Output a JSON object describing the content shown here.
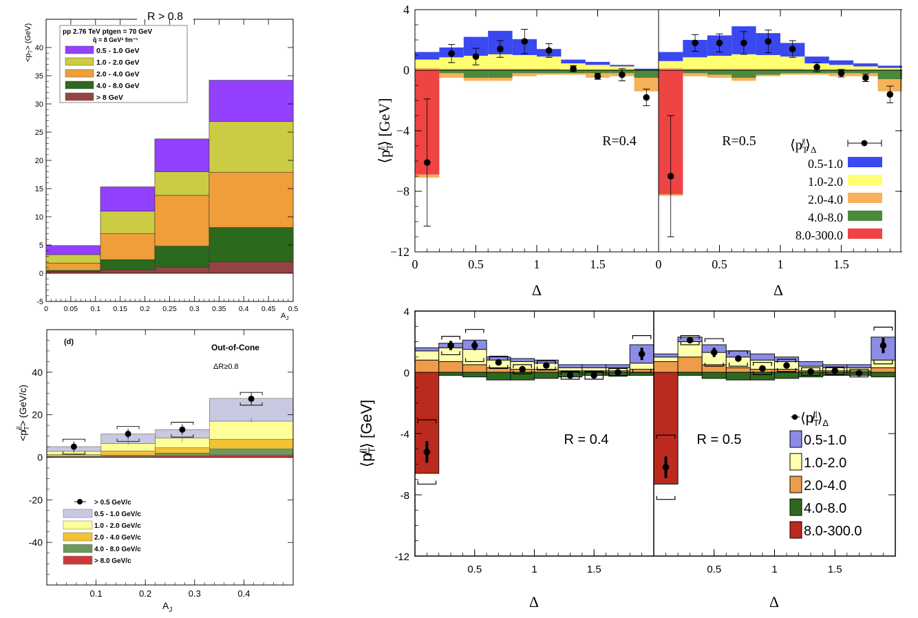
{
  "colors": {
    "purple": "#9440ff",
    "lime": "#cccc44",
    "orange": "#f09e3a",
    "dkgreen": "#2b6a1c",
    "maroon": "#954343",
    "blue": "#3a48f0",
    "yellow": "#ffff70",
    "lorange": "#f5b25a",
    "green": "#4a8a3a",
    "red": "#ee4444",
    "lavender": "#c8c8e0",
    "lyellow": "#ffff99",
    "gold": "#f2c232",
    "sage": "#6b9a5a",
    "crimson": "#cc3a3a",
    "pblue": "#8c8ce8",
    "pyellow": "#ffffb0",
    "porange": "#ee9c4a",
    "pgreen": "#2e6a1e",
    "pred": "#bb2a1e"
  },
  "chart_data": [
    {
      "id": "A",
      "type": "bar",
      "title": "R > 0.8",
      "ylabel": "<p",
      "ylabel_sub": "T",
      "ylabel_tail": "> (GeV)",
      "xlabel": "A",
      "xlabel_sub": "J",
      "xlim": [
        0,
        0.5
      ],
      "ylim": [
        -5,
        45
      ],
      "xticks": [
        0,
        0.05,
        0.1,
        0.15,
        0.2,
        0.25,
        0.3,
        0.35,
        0.4,
        0.45,
        0.5
      ],
      "xtick_labels": [
        "0",
        "0.05",
        "0.1",
        "0.15",
        "0.2",
        "0.25",
        "0.3",
        "0.35",
        "0.4",
        "0.45",
        "0.5"
      ],
      "yticks": [
        -5,
        0,
        5,
        10,
        15,
        20,
        25,
        30,
        35,
        40
      ],
      "ytick_labels": [
        "-5",
        "0",
        "5",
        "10",
        "15",
        "20",
        "25",
        "30",
        "35",
        "40"
      ],
      "bins": [
        [
          0,
          0.11
        ],
        [
          0.11,
          0.22
        ],
        [
          0.22,
          0.33
        ],
        [
          0.33,
          0.5
        ]
      ],
      "stacked": true,
      "series": [
        {
          "name": "> 8 GeV",
          "color": "maroon",
          "values": [
            0.3,
            0.6,
            1.1,
            2.0
          ]
        },
        {
          "name": "4.0 - 8.0 GeV",
          "color": "dkgreen",
          "values": [
            0.2,
            1.8,
            3.7,
            6.1
          ]
        },
        {
          "name": "2.0 - 4.0 GeV",
          "color": "orange",
          "values": [
            1.3,
            4.6,
            9.0,
            9.8
          ]
        },
        {
          "name": "1.0 - 2.0 GeV",
          "color": "lime",
          "values": [
            1.5,
            4.0,
            4.2,
            9.0
          ]
        },
        {
          "name": "0.5 - 1.0 GeV",
          "color": "purple",
          "values": [
            1.6,
            4.3,
            5.8,
            7.3
          ]
        }
      ],
      "legend_header": [
        "pp 2.76 TeV ptgen = 70 GeV",
        "q̂ = 8 GeV² fm⁻¹"
      ],
      "legend_order": [
        "0.5 - 1.0 GeV",
        "1.0 - 2.0 GeV",
        "2.0 - 4.0 GeV",
        "4.0 - 8.0 GeV",
        "> 8 GeV"
      ]
    },
    {
      "id": "B",
      "type": "bar",
      "ylabel": "⟨p̸",
      "ylabel_sub": "T",
      "ylabel_sup": "||",
      "ylabel_tail": "⟩ [GeV]",
      "xlabel": "Δ",
      "ylim": [
        -12,
        4
      ],
      "yticks": [
        -12,
        -8,
        -4,
        0,
        4
      ],
      "ytick_labels": [
        "−12",
        "−8",
        "−4",
        "0",
        "4"
      ],
      "xticks": [
        0,
        0.5,
        1,
        1.5
      ],
      "xtick_labels": [
        "0",
        "0.5",
        "1",
        "1.5"
      ],
      "legend_title": "⟨p̸",
      "legend_title_sub": "T",
      "legend_title_sup": "||",
      "legend_title_tail": "⟩",
      "legend_title_delta": "Δ",
      "legend": [
        "0.5-1.0",
        "1.0-2.0",
        "2.0-4.0",
        "4.0-8.0",
        "8.0-300.0"
      ],
      "legend_colors": [
        "blue",
        "yellow",
        "lorange",
        "green",
        "red"
      ],
      "panels": [
        {
          "label": "R=0.4",
          "xlim": [
            0,
            2
          ],
          "bin_edges": [
            0,
            0.2,
            0.4,
            0.6,
            0.8,
            1.0,
            1.2,
            1.4,
            1.6,
            1.8,
            2.0
          ],
          "pos": {
            "8.0-300.0": [
              0,
              0,
              0,
              0,
              0,
              0,
              0,
              0,
              0,
              0
            ],
            "4.0-8.0": [
              0,
              0,
              0,
              0,
              0,
              0,
              0,
              0,
              0,
              0
            ],
            "2.0-4.0": [
              0.15,
              0.1,
              0.1,
              0.1,
              0.1,
              0.1,
              0.05,
              0.05,
              0.05,
              0
            ],
            "1.0-2.0": [
              0.55,
              0.75,
              0.85,
              0.95,
              0.9,
              0.8,
              0.4,
              0.3,
              0.2,
              0
            ],
            "0.5-1.0": [
              0.5,
              0.65,
              1.25,
              1.55,
              1.05,
              0.5,
              0.25,
              0.2,
              0.1,
              0.1
            ]
          },
          "neg": {
            "8.0-300.0": [
              -6.9,
              0,
              0,
              0,
              0,
              0,
              0,
              0,
              0,
              0
            ],
            "4.0-8.0": [
              0,
              -0.2,
              -0.5,
              -0.5,
              -0.2,
              -0.2,
              -0.2,
              -0.2,
              -0.2,
              -0.5
            ],
            "2.0-4.0": [
              -0.2,
              -0.3,
              -0.2,
              -0.2,
              -0.2,
              -0.1,
              -0.1,
              -0.3,
              -0.2,
              -0.9
            ]
          },
          "points": [
            -6.1,
            1.1,
            0.9,
            1.4,
            1.9,
            1.3,
            0.1,
            -0.4,
            -0.3,
            -1.8
          ],
          "errors": [
            4.2,
            0.6,
            0.55,
            0.55,
            0.8,
            0.45,
            0.2,
            0.2,
            0.4,
            0.55
          ]
        },
        {
          "label": "R=0.5",
          "xlim": [
            0,
            2
          ],
          "bin_edges": [
            0,
            0.2,
            0.4,
            0.6,
            0.8,
            1.0,
            1.2,
            1.4,
            1.6,
            1.8,
            2.0
          ],
          "pos": {
            "8.0-300.0": [
              0,
              0,
              0,
              0,
              0,
              0,
              0,
              0,
              0,
              0
            ],
            "4.0-8.0": [
              0,
              0,
              0,
              0,
              0,
              0,
              0,
              0,
              0,
              0
            ],
            "2.0-4.0": [
              0.15,
              0.1,
              0.1,
              0.1,
              0.1,
              0.1,
              0.05,
              0.05,
              0.05,
              0.05
            ],
            "1.0-2.0": [
              0.45,
              0.75,
              0.85,
              0.95,
              0.9,
              0.8,
              0.4,
              0.3,
              0.2,
              0.1
            ],
            "0.5-1.0": [
              0.6,
              1.15,
              1.35,
              1.85,
              1.45,
              0.9,
              0.45,
              0.3,
              0.2,
              0.15
            ]
          },
          "neg": {
            "8.0-300.0": [
              -8.2,
              0,
              0,
              0,
              0,
              0,
              0,
              0,
              0,
              0
            ],
            "4.0-8.0": [
              0,
              -0.2,
              -0.3,
              -0.5,
              -0.3,
              -0.2,
              -0.2,
              -0.2,
              -0.2,
              -0.6
            ],
            "2.0-4.0": [
              -0.1,
              -0.2,
              -0.2,
              -0.2,
              -0.1,
              -0.1,
              -0.1,
              -0.2,
              -0.2,
              -0.8
            ]
          },
          "points": [
            -7.0,
            1.8,
            1.8,
            1.8,
            1.9,
            1.4,
            0.2,
            -0.2,
            -0.5,
            -1.6
          ],
          "errors": [
            4.0,
            0.55,
            0.6,
            0.75,
            0.75,
            0.55,
            0.3,
            0.25,
            0.25,
            0.55
          ]
        }
      ]
    },
    {
      "id": "C",
      "type": "bar",
      "panel_label": "(d)",
      "text1": "Out-of-Cone",
      "text2": "ΔR≥0.8",
      "ylabel": "<p̸",
      "ylabel_sub": "T",
      "ylabel_sup": "||",
      "ylabel_tail": "> (GeV/c)",
      "xlabel": "A",
      "xlabel_sub": "J",
      "xlim": [
        0,
        0.5
      ],
      "ylim": [
        -60,
        60
      ],
      "yticks": [
        -40,
        -20,
        0,
        20,
        40
      ],
      "ytick_labels": [
        "-40",
        "-20",
        "0",
        "20",
        "40"
      ],
      "xticks": [
        0.1,
        0.2,
        0.3,
        0.4
      ],
      "xtick_labels": [
        "0.1",
        "0.2",
        "0.3",
        "0.4"
      ],
      "bins": [
        [
          0,
          0.11
        ],
        [
          0.11,
          0.22
        ],
        [
          0.22,
          0.33
        ],
        [
          0.33,
          0.5
        ]
      ],
      "series": [
        {
          "name": "> 8.0 GeV/c",
          "color": "crimson",
          "values": [
            0.2,
            0.4,
            0.8,
            1.2
          ]
        },
        {
          "name": "4.0 - 8.0 GeV/c",
          "color": "sage",
          "values": [
            0.3,
            0.6,
            1.2,
            2.8
          ]
        },
        {
          "name": "2.0 - 4.0 GeV/c",
          "color": "gold",
          "values": [
            0.8,
            2.0,
            2.5,
            4.5
          ]
        },
        {
          "name": "1.0 - 2.0 GeV/c",
          "color": "lyellow",
          "values": [
            1.5,
            3.5,
            4.5,
            8.5
          ]
        },
        {
          "name": "0.5 - 1.0 GeV/c",
          "color": "lavender",
          "values": [
            2.2,
            4.5,
            4.0,
            10.7
          ]
        }
      ],
      "points": [
        5,
        11,
        13,
        27.5
      ],
      "errors": [
        2.5,
        2.5,
        2.5,
        3
      ],
      "sys": [
        3.5,
        3.5,
        3.5,
        3
      ],
      "legend_marker": "> 0.5 GeV/c",
      "legend_order": [
        "0.5 - 1.0 GeV/c",
        "1.0 - 2.0 GeV/c",
        "2.0 - 4.0 GeV/c",
        "4.0 - 8.0 GeV/c",
        "> 8.0 GeV/c"
      ]
    },
    {
      "id": "D",
      "type": "bar",
      "ylabel": "⟨p̸",
      "ylabel_sub": "T",
      "ylabel_sup": "||",
      "ylabel_tail": "⟩ [GeV]",
      "xlabel": "Δ",
      "ylim": [
        -12,
        4
      ],
      "yticks": [
        -12,
        -8,
        -4,
        0,
        4
      ],
      "ytick_labels": [
        "-12",
        "-8",
        "-4",
        "0",
        "4"
      ],
      "xticks": [
        0.5,
        1,
        1.5
      ],
      "xtick_labels": [
        "0.5",
        "1",
        "1.5"
      ],
      "legend_title": "⟨p̸",
      "legend_title_sub": "T",
      "legend_title_sup": "||",
      "legend_title_tail": "⟩",
      "legend_title_delta": "Δ",
      "legend": [
        "0.5-1.0",
        "1.0-2.0",
        "2.0-4.0",
        "4.0-8.0",
        "8.0-300.0"
      ],
      "legend_colors": [
        "pblue",
        "pyellow",
        "porange",
        "pgreen",
        "pred"
      ],
      "panels": [
        {
          "label": "R = 0.4",
          "xlim": [
            0,
            2
          ],
          "bin_edges": [
            0,
            0.2,
            0.4,
            0.6,
            0.8,
            1.0,
            1.2,
            1.4,
            1.6,
            1.8,
            2.0
          ],
          "pos": {
            "2.0-4.0": [
              0.8,
              0.7,
              0.5,
              0.3,
              0.2,
              0.2,
              0.1,
              0.1,
              0.1,
              0.2
            ],
            "1.0-2.0": [
              0.6,
              0.9,
              1.0,
              0.5,
              0.5,
              0.4,
              0.2,
              0.2,
              0.2,
              0.4
            ],
            "0.5-1.0": [
              0.2,
              0.3,
              0.6,
              0.2,
              0.2,
              0.2,
              0.2,
              0.2,
              0.2,
              1.2
            ]
          },
          "neg": {
            "8.0-300.0": [
              -6.6,
              0,
              0,
              0,
              0,
              0,
              0,
              0,
              0,
              0
            ],
            "4.0-8.0": [
              0,
              -0.2,
              -0.3,
              -0.5,
              -0.5,
              -0.4,
              -0.3,
              -0.2,
              -0.2,
              -0.2
            ]
          },
          "points": [
            -5.2,
            1.75,
            1.75,
            0.65,
            0.2,
            0.45,
            -0.2,
            -0.2,
            0.0,
            1.2
          ],
          "errors": [
            0.7,
            0.3,
            0.3,
            0.2,
            0.15,
            0.15,
            0.15,
            0.15,
            0.15,
            0.4
          ],
          "sys": [
            2.1,
            0.6,
            1.05,
            0.4,
            0.3,
            0.3,
            0.25,
            0.25,
            0.25,
            1.2
          ]
        },
        {
          "label": "R = 0.5",
          "xlim": [
            0,
            2
          ],
          "bin_edges": [
            0,
            0.2,
            0.4,
            0.6,
            0.8,
            1.0,
            1.2,
            1.4,
            1.6,
            1.8,
            2.0
          ],
          "pos": {
            "2.0-4.0": [
              0.7,
              1.0,
              0.5,
              0.3,
              0.2,
              0.2,
              0.1,
              0.1,
              0.1,
              0.3
            ],
            "1.0-2.0": [
              0.3,
              1.0,
              0.8,
              0.7,
              0.6,
              0.5,
              0.3,
              0.2,
              0.2,
              0.5
            ],
            "0.5-1.0": [
              0.2,
              0.3,
              0.5,
              0.4,
              0.4,
              0.3,
              0.3,
              0.2,
              0.2,
              1.5
            ]
          },
          "neg": {
            "8.0-300.0": [
              -7.3,
              0,
              0,
              0,
              0,
              0,
              0,
              0,
              0,
              0
            ],
            "4.0-8.0": [
              0,
              -0.2,
              -0.4,
              -0.5,
              -0.5,
              -0.4,
              -0.3,
              -0.2,
              -0.2,
              -0.3
            ]
          },
          "points": [
            -6.2,
            2.1,
            1.3,
            0.9,
            0.25,
            0.45,
            0.05,
            0.1,
            -0.05,
            1.75
          ],
          "errors": [
            0.7,
            0.2,
            0.3,
            0.2,
            0.15,
            0.15,
            0.15,
            0.15,
            0.15,
            0.5
          ],
          "sys": [
            2.1,
            0.3,
            0.9,
            0.5,
            0.4,
            0.4,
            0.25,
            0.25,
            0.25,
            1.2
          ]
        }
      ]
    }
  ]
}
